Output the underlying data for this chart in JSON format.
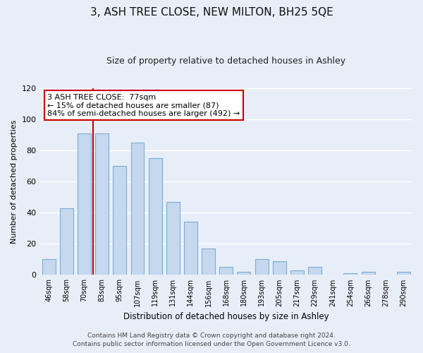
{
  "title": "3, ASH TREE CLOSE, NEW MILTON, BH25 5QE",
  "subtitle": "Size of property relative to detached houses in Ashley",
  "xlabel": "Distribution of detached houses by size in Ashley",
  "ylabel": "Number of detached properties",
  "bin_labels": [
    "46sqm",
    "58sqm",
    "70sqm",
    "83sqm",
    "95sqm",
    "107sqm",
    "119sqm",
    "131sqm",
    "144sqm",
    "156sqm",
    "168sqm",
    "180sqm",
    "193sqm",
    "205sqm",
    "217sqm",
    "229sqm",
    "241sqm",
    "254sqm",
    "266sqm",
    "278sqm",
    "290sqm"
  ],
  "bar_values": [
    10,
    43,
    91,
    91,
    70,
    85,
    75,
    47,
    34,
    17,
    5,
    2,
    10,
    9,
    3,
    5,
    0,
    1,
    2,
    0,
    2
  ],
  "bar_color": "#c5d8ee",
  "bar_edge_color": "#7aadd4",
  "vline_color": "#cc0000",
  "annotation_lines": [
    "3 ASH TREE CLOSE:  77sqm",
    "← 15% of detached houses are smaller (87)",
    "84% of semi-detached houses are larger (492) →"
  ],
  "annotation_box_color": "#ffffff",
  "annotation_box_edge_color": "#cc0000",
  "ylim": [
    0,
    120
  ],
  "yticks": [
    0,
    20,
    40,
    60,
    80,
    100,
    120
  ],
  "footer_line1": "Contains HM Land Registry data © Crown copyright and database right 2024.",
  "footer_line2": "Contains public sector information licensed under the Open Government Licence v3.0.",
  "background_color": "#e8eef8",
  "plot_bg_color": "#e8eef8",
  "grid_color": "#ffffff",
  "title_fontsize": 11,
  "subtitle_fontsize": 9,
  "ylabel_fontsize": 8,
  "xlabel_fontsize": 8.5
}
